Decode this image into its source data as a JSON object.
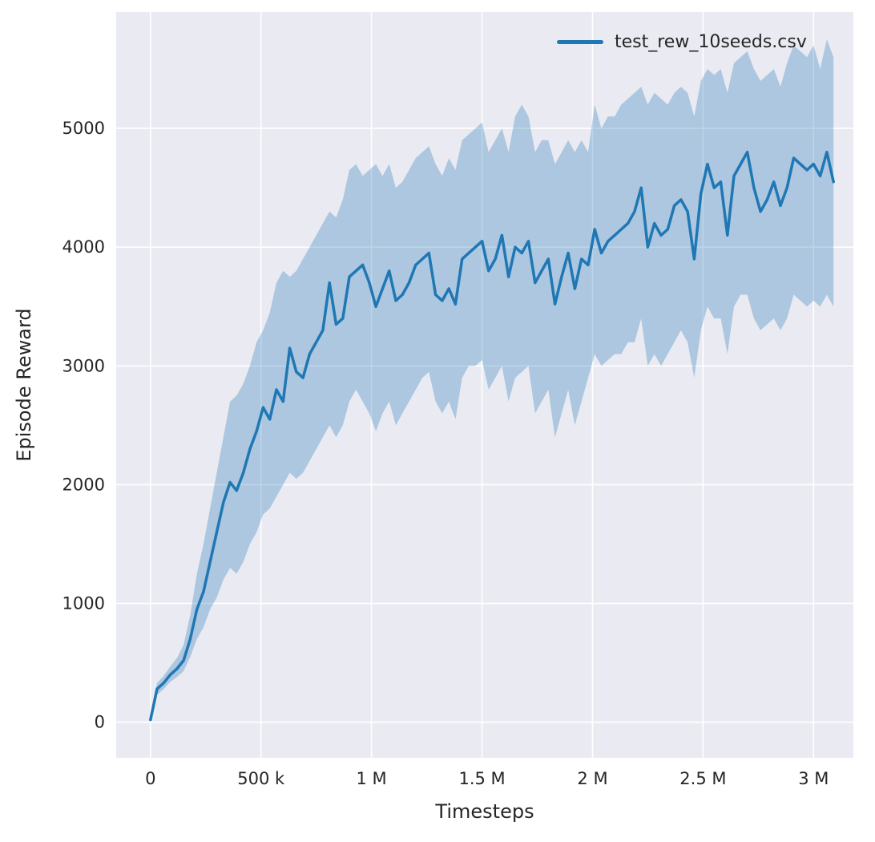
{
  "chart_data": {
    "type": "line",
    "title": "",
    "xlabel": "Timesteps",
    "ylabel": "Episode Reward",
    "legend": [
      "test_rew_10seeds.csv"
    ],
    "legend_position": "upper right",
    "grid": true,
    "xlim": [
      -155000,
      3180000
    ],
    "ylim": [
      -300,
      5980
    ],
    "x_ticks": {
      "values": [
        0,
        500000,
        1000000,
        1500000,
        2000000,
        2500000,
        3000000
      ],
      "labels": [
        "0",
        "500 k",
        "1 M",
        "1.5 M",
        "2 M",
        "2.5 M",
        "3 M"
      ]
    },
    "y_ticks": {
      "values": [
        0,
        1000,
        2000,
        3000,
        4000,
        5000
      ],
      "labels": [
        "0",
        "1000",
        "2000",
        "3000",
        "4000",
        "5000"
      ]
    },
    "colors": {
      "line": "#1f77b4",
      "band": "#1f77b4",
      "band_opacity": 0.3,
      "plot_bg": "#eaeaf2",
      "grid": "#ffffff",
      "text": "#262626"
    },
    "series": [
      {
        "name": "test_rew_10seeds.csv",
        "x": [
          0,
          30000,
          60000,
          90000,
          120000,
          150000,
          180000,
          210000,
          240000,
          270000,
          300000,
          330000,
          360000,
          390000,
          420000,
          450000,
          480000,
          510000,
          540000,
          570000,
          600000,
          630000,
          660000,
          690000,
          720000,
          750000,
          780000,
          810000,
          840000,
          870000,
          900000,
          930000,
          960000,
          990000,
          1020000,
          1050000,
          1080000,
          1110000,
          1140000,
          1170000,
          1200000,
          1230000,
          1260000,
          1290000,
          1320000,
          1350000,
          1380000,
          1410000,
          1440000,
          1470000,
          1500000,
          1530000,
          1560000,
          1590000,
          1620000,
          1650000,
          1680000,
          1710000,
          1740000,
          1770000,
          1800000,
          1830000,
          1860000,
          1890000,
          1920000,
          1950000,
          1980000,
          2010000,
          2040000,
          2070000,
          2100000,
          2130000,
          2160000,
          2190000,
          2220000,
          2250000,
          2280000,
          2310000,
          2340000,
          2370000,
          2400000,
          2430000,
          2460000,
          2490000,
          2520000,
          2550000,
          2580000,
          2610000,
          2640000,
          2670000,
          2700000,
          2730000,
          2760000,
          2790000,
          2820000,
          2850000,
          2880000,
          2910000,
          2940000,
          2970000,
          3000000,
          3030000,
          3060000,
          3090000
        ],
        "mean": [
          20,
          280,
          330,
          400,
          450,
          520,
          700,
          950,
          1100,
          1350,
          1600,
          1850,
          2020,
          1950,
          2100,
          2300,
          2450,
          2650,
          2550,
          2800,
          2700,
          3150,
          2950,
          2900,
          3100,
          3200,
          3300,
          3700,
          3350,
          3400,
          3750,
          3800,
          3850,
          3700,
          3500,
          3650,
          3800,
          3550,
          3600,
          3700,
          3850,
          3900,
          3950,
          3600,
          3550,
          3650,
          3520,
          3900,
          3950,
          4000,
          4050,
          3800,
          3900,
          4100,
          3750,
          4000,
          3950,
          4050,
          3700,
          3800,
          3900,
          3520,
          3750,
          3950,
          3650,
          3900,
          3850,
          4150,
          3950,
          4050,
          4100,
          4150,
          4200,
          4300,
          4500,
          4000,
          4200,
          4100,
          4150,
          4350,
          4400,
          4300,
          3900,
          4450,
          4700,
          4500,
          4550,
          4100,
          4600,
          4700,
          4800,
          4500,
          4300,
          4400,
          4550,
          4350,
          4500,
          4750,
          4700,
          4650,
          4700,
          4600,
          4800,
          4550
        ],
        "low": [
          10,
          230,
          280,
          340,
          380,
          430,
          550,
          700,
          800,
          950,
          1050,
          1200,
          1300,
          1250,
          1350,
          1500,
          1600,
          1750,
          1800,
          1900,
          2000,
          2100,
          2050,
          2100,
          2200,
          2300,
          2400,
          2500,
          2400,
          2500,
          2700,
          2800,
          2700,
          2600,
          2450,
          2600,
          2700,
          2500,
          2600,
          2700,
          2800,
          2900,
          2950,
          2700,
          2600,
          2700,
          2550,
          2900,
          3000,
          3000,
          3050,
          2800,
          2900,
          3000,
          2700,
          2900,
          2950,
          3000,
          2600,
          2700,
          2800,
          2400,
          2600,
          2800,
          2500,
          2700,
          2900,
          3100,
          3000,
          3050,
          3100,
          3100,
          3200,
          3200,
          3400,
          3000,
          3100,
          3000,
          3100,
          3200,
          3300,
          3200,
          2900,
          3300,
          3500,
          3400,
          3400,
          3100,
          3500,
          3600,
          3600,
          3400,
          3300,
          3350,
          3400,
          3300,
          3400,
          3600,
          3550,
          3500,
          3550,
          3500,
          3600,
          3500
        ],
        "high": [
          40,
          330,
          390,
          470,
          540,
          650,
          900,
          1250,
          1500,
          1800,
          2100,
          2400,
          2700,
          2750,
          2850,
          3000,
          3200,
          3300,
          3450,
          3700,
          3800,
          3750,
          3800,
          3900,
          4000,
          4100,
          4200,
          4300,
          4250,
          4400,
          4650,
          4700,
          4600,
          4650,
          4700,
          4600,
          4700,
          4500,
          4550,
          4650,
          4750,
          4800,
          4850,
          4700,
          4600,
          4750,
          4650,
          4900,
          4950,
          5000,
          5050,
          4800,
          4900,
          5000,
          4800,
          5100,
          5200,
          5100,
          4800,
          4900,
          4900,
          4700,
          4800,
          4900,
          4800,
          4900,
          4800,
          5200,
          5000,
          5100,
          5100,
          5200,
          5250,
          5300,
          5350,
          5200,
          5300,
          5250,
          5200,
          5300,
          5350,
          5300,
          5100,
          5400,
          5500,
          5450,
          5500,
          5300,
          5550,
          5600,
          5650,
          5500,
          5400,
          5450,
          5500,
          5350,
          5550,
          5700,
          5650,
          5600,
          5700,
          5500,
          5750,
          5600
        ]
      }
    ]
  }
}
